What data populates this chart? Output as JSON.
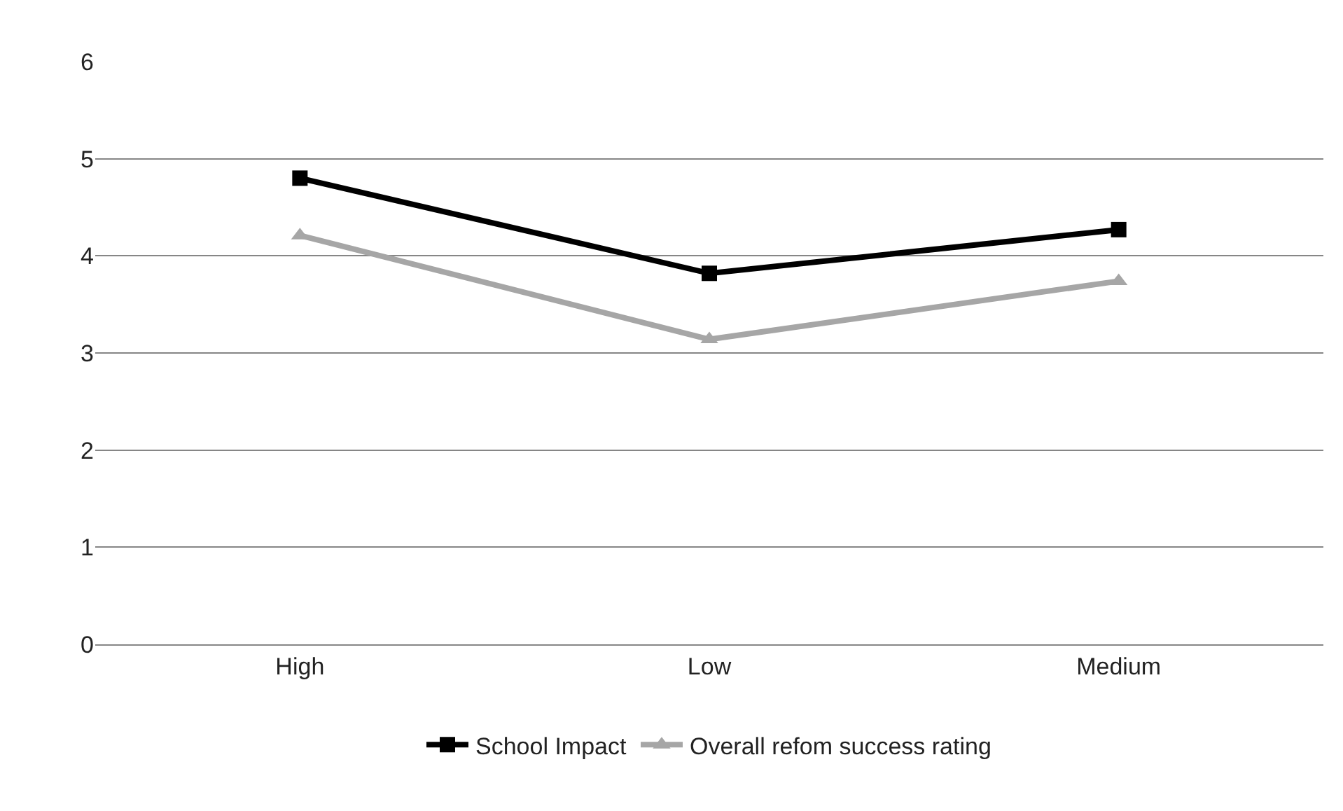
{
  "chart_data": {
    "type": "line",
    "categories": [
      "High",
      "Low",
      "Medium"
    ],
    "series": [
      {
        "name": "School Impact",
        "color": "#000000",
        "marker": "square",
        "values": [
          4.8,
          3.82,
          4.27
        ]
      },
      {
        "name": "Overall refom success rating",
        "color": "#a6a6a6",
        "marker": "triangle",
        "values": [
          4.21,
          3.14,
          3.74
        ]
      }
    ],
    "ylim": [
      0,
      6
    ],
    "yticks": [
      0,
      1,
      2,
      3,
      4,
      5,
      6
    ],
    "grid": "y",
    "legend": "bottom",
    "line_style": "solid"
  }
}
